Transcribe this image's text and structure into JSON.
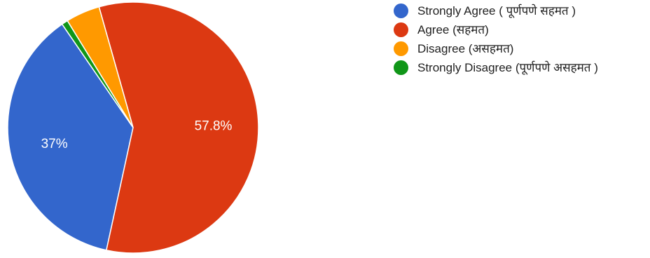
{
  "chart_data": {
    "type": "pie",
    "legend_position": "right",
    "slices": [
      {
        "label": "Strongly Agree ( पूर्णपणे सहमत )",
        "value": 37,
        "value_label": "37%",
        "color": "#3366cc"
      },
      {
        "label": "Agree (सहमत)",
        "value": 57.8,
        "value_label": "57.8%",
        "color": "#dc3912"
      },
      {
        "label": "Disagree (असहमत)",
        "value": 4.4,
        "value_label": "",
        "color": "#ff9900"
      },
      {
        "label": "Strongly Disagree (पूर्णपणे असहमत )",
        "value": 0.8,
        "value_label": "",
        "color": "#109618"
      }
    ]
  }
}
